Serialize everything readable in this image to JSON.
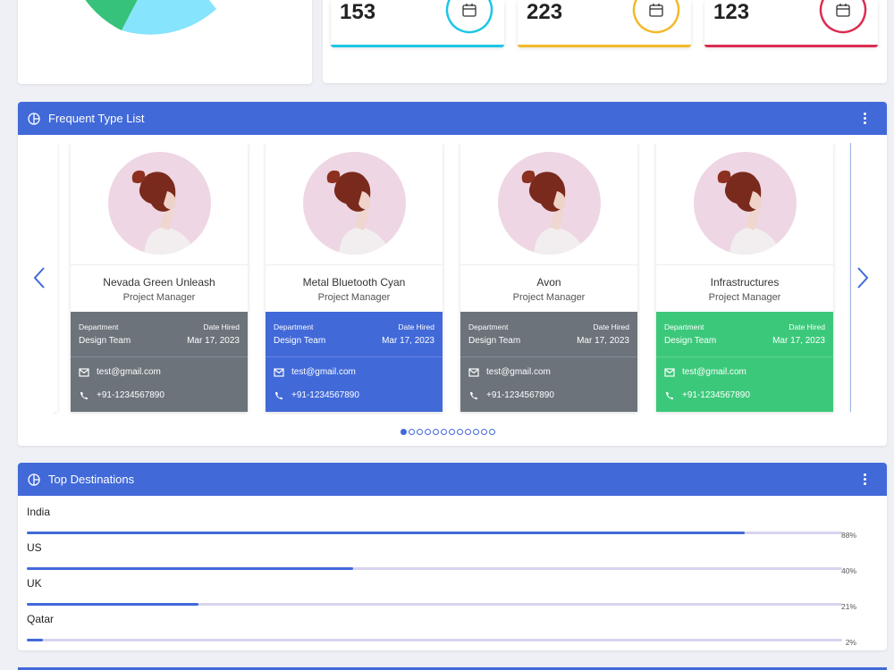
{
  "colors": {
    "primary": "#4169d8",
    "cyan": "#1ec6e6",
    "yellow": "#f3b92a",
    "red": "#dc2d52",
    "gray": "#6c737b",
    "green": "#3cc87a",
    "pie_green": "#36c27a",
    "pie_cyan": "#86e4fc"
  },
  "stats": [
    {
      "value": "153",
      "icon": "calendar-icon",
      "color": "#1ec6e6"
    },
    {
      "value": "223",
      "icon": "calendar-icon",
      "color": "#f3b92a"
    },
    {
      "value": "123",
      "icon": "calendar-icon",
      "color": "#dc2d52"
    }
  ],
  "frequent": {
    "title": "Frequent Type List",
    "icon": "pie-chart-icon",
    "people": [
      {
        "name": "Nevada Green Unleash",
        "role": "Project Manager",
        "dept_label": "Department",
        "dept": "Design Team",
        "hired_label": "Date Hired",
        "hired": "Mar 17, 2023",
        "email": "test@gmail.com",
        "phone": "+91-1234567890",
        "color": "#6c737b"
      },
      {
        "name": "Metal Bluetooth Cyan",
        "role": "Project Manager",
        "dept_label": "Department",
        "dept": "Design Team",
        "hired_label": "Date Hired",
        "hired": "Mar 17, 2023",
        "email": "test@gmail.com",
        "phone": "+91-1234567890",
        "color": "#4169d8"
      },
      {
        "name": "Avon",
        "role": "Project Manager",
        "dept_label": "Department",
        "dept": "Design Team",
        "hired_label": "Date Hired",
        "hired": "Mar 17, 2023",
        "email": "test@gmail.com",
        "phone": "+91-1234567890",
        "color": "#6c737b"
      },
      {
        "name": "Infrastructures",
        "role": "Project Manager",
        "dept_label": "Department",
        "dept": "Design Team",
        "hired_label": "Date Hired",
        "hired": "Mar 17, 2023",
        "email": "test@gmail.com",
        "phone": "+91-1234567890",
        "color": "#3cc87a"
      }
    ],
    "dots_active_index": 0
  },
  "destinations": {
    "title": "Top Destinations",
    "icon": "pie-chart-icon",
    "items": [
      {
        "name": "India",
        "percent": 88,
        "label": "88%"
      },
      {
        "name": "US",
        "percent": 40,
        "label": "40%"
      },
      {
        "name": "UK",
        "percent": 21,
        "label": "21%"
      },
      {
        "name": "Qatar",
        "percent": 2,
        "label": "2%"
      }
    ]
  }
}
